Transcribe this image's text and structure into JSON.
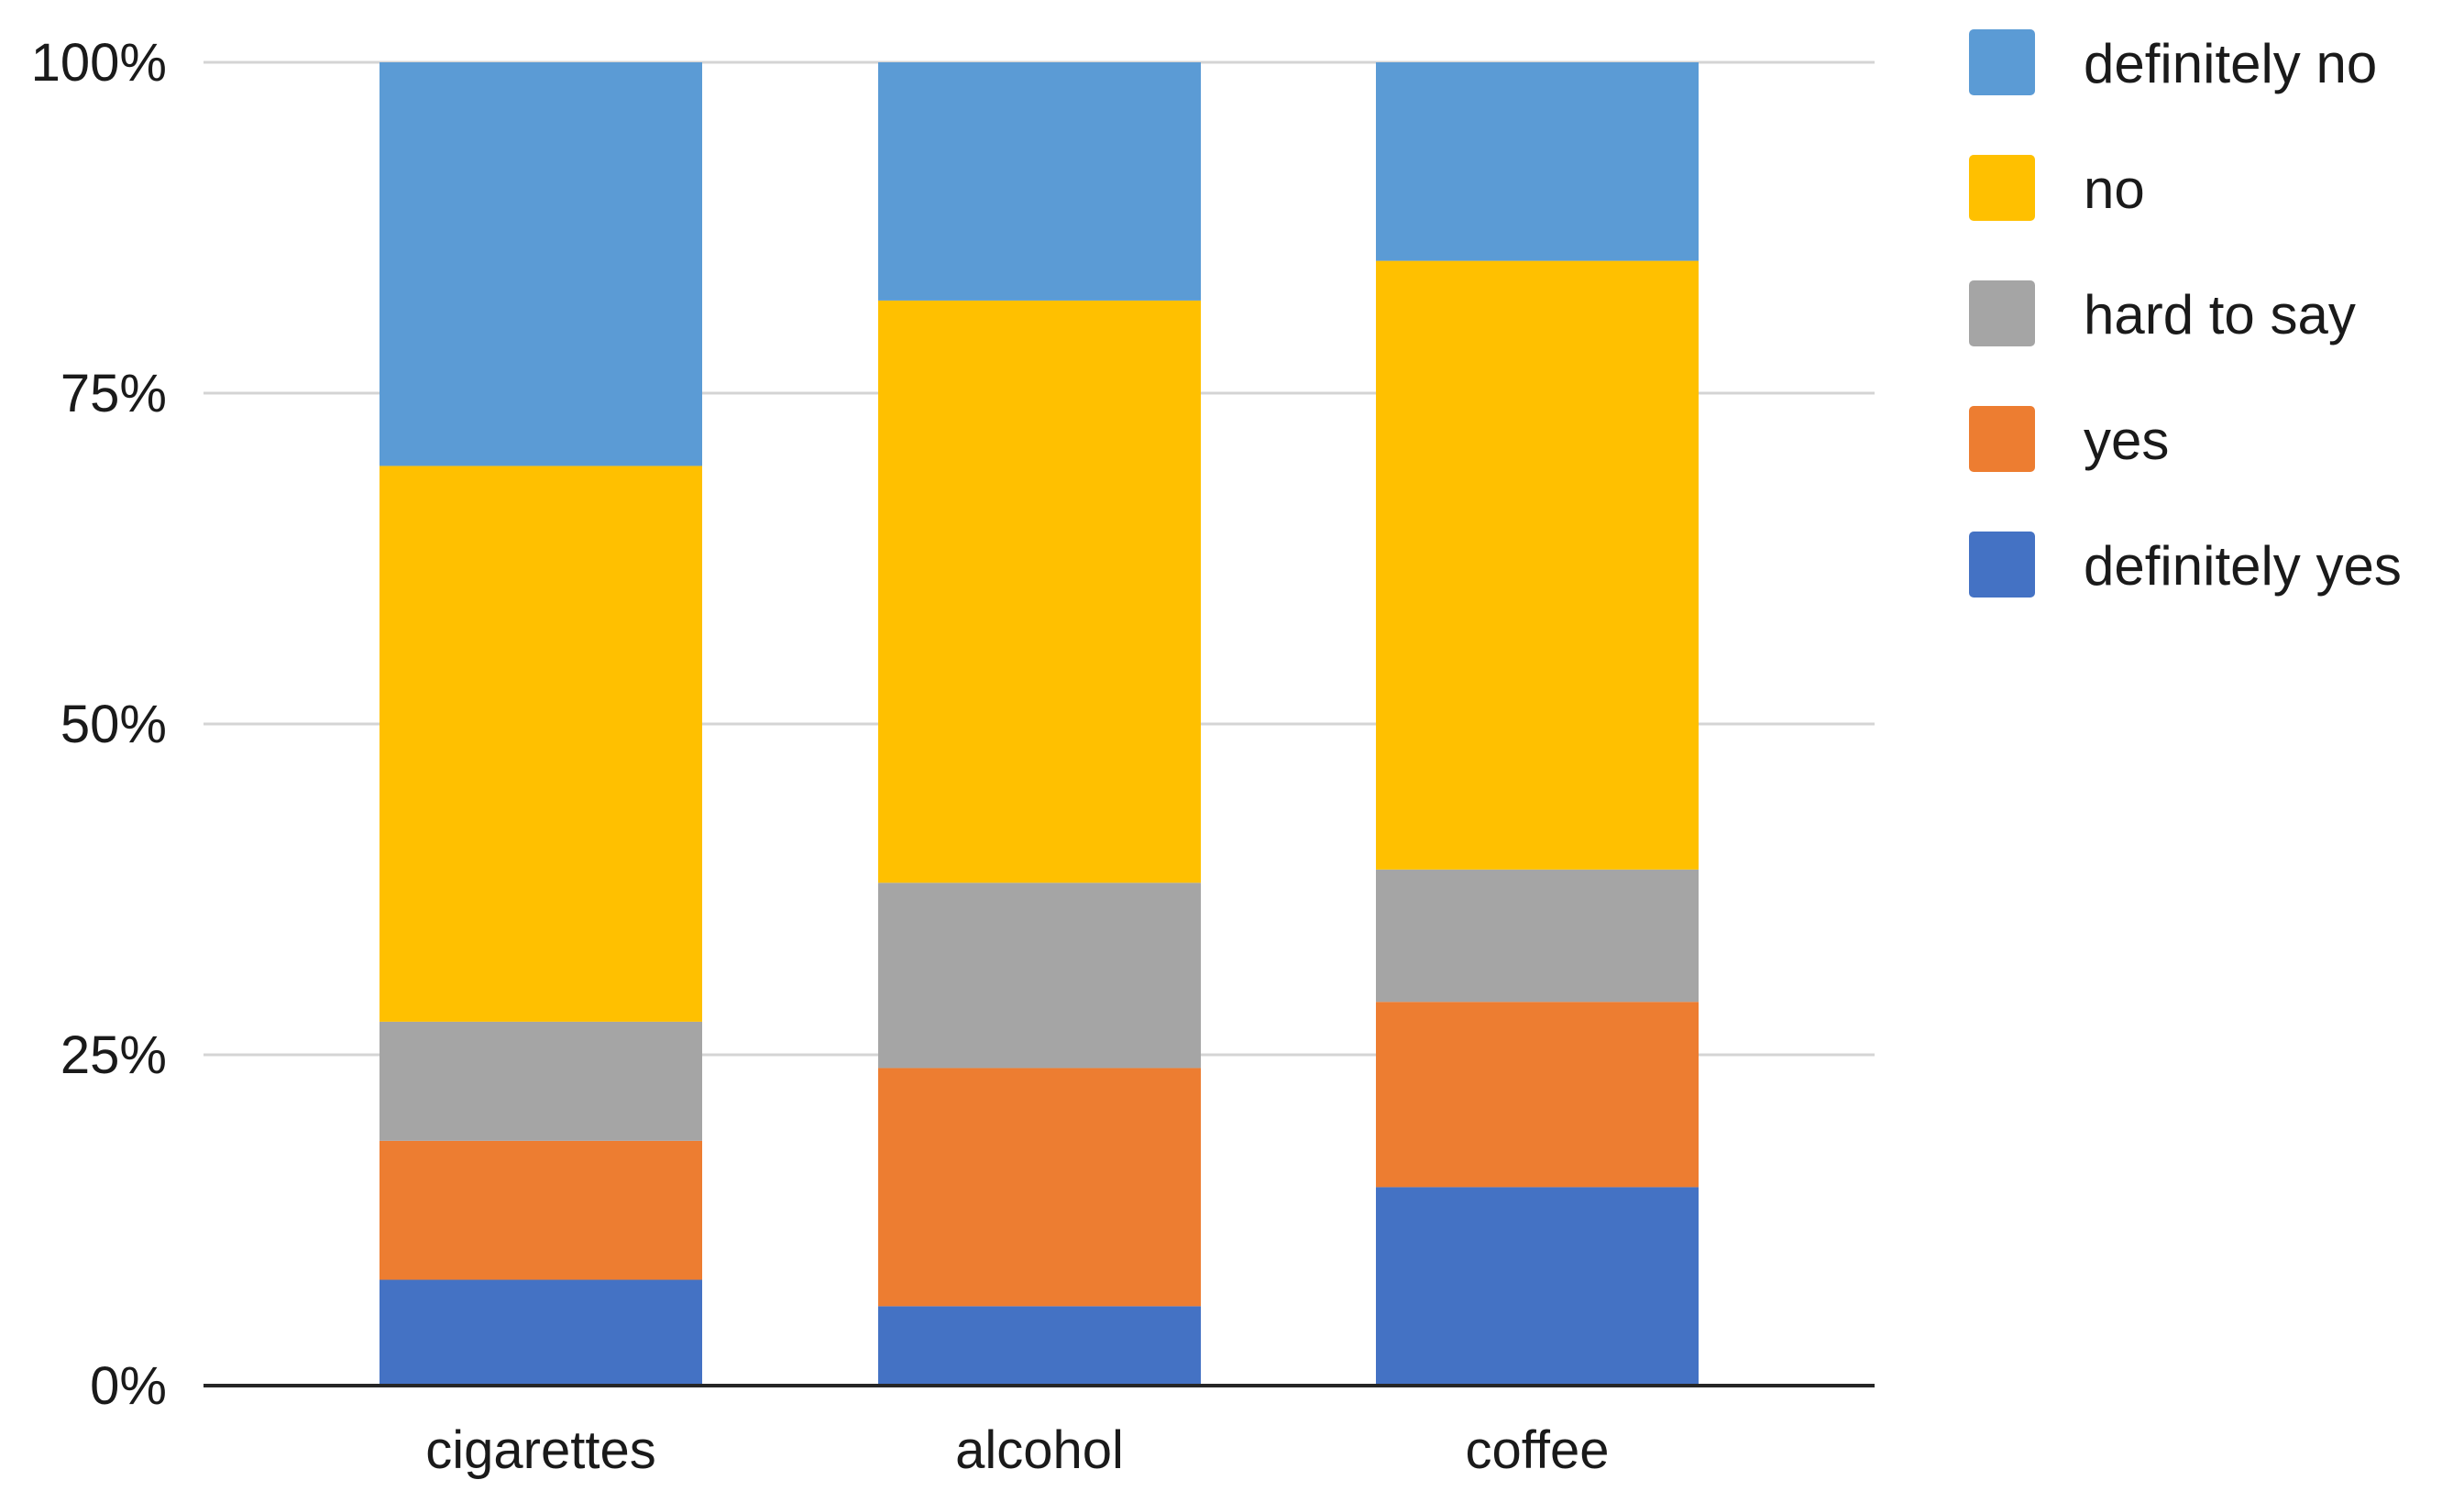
{
  "chart_data": {
    "type": "bar",
    "stacked": true,
    "percent": true,
    "title": "",
    "xlabel": "",
    "ylabel": "",
    "ylim": [
      0,
      100
    ],
    "y_ticks": [
      {
        "value": 0,
        "label": "0%"
      },
      {
        "value": 25,
        "label": "25%"
      },
      {
        "value": 50,
        "label": "50%"
      },
      {
        "value": 75,
        "label": "75%"
      },
      {
        "value": 100,
        "label": "100%"
      }
    ],
    "grid": true,
    "legend_position": "right",
    "categories": [
      "cigarettes",
      "alcohol",
      "coffee"
    ],
    "series": [
      {
        "name": "definitely yes",
        "color": "#4472C4",
        "values": [
          8,
          6,
          15
        ]
      },
      {
        "name": "yes",
        "color": "#ED7D31",
        "values": [
          10.5,
          18,
          14
        ]
      },
      {
        "name": "hard to say",
        "color": "#A5A5A5",
        "values": [
          9,
          14,
          10
        ]
      },
      {
        "name": "no",
        "color": "#FFC000",
        "values": [
          42,
          44,
          46
        ]
      },
      {
        "name": "definitely no",
        "color": "#5B9BD5",
        "values": [
          30.5,
          18,
          15
        ]
      }
    ],
    "legend_order": [
      "definitely no",
      "no",
      "hard to say",
      "yes",
      "definitely yes"
    ]
  }
}
